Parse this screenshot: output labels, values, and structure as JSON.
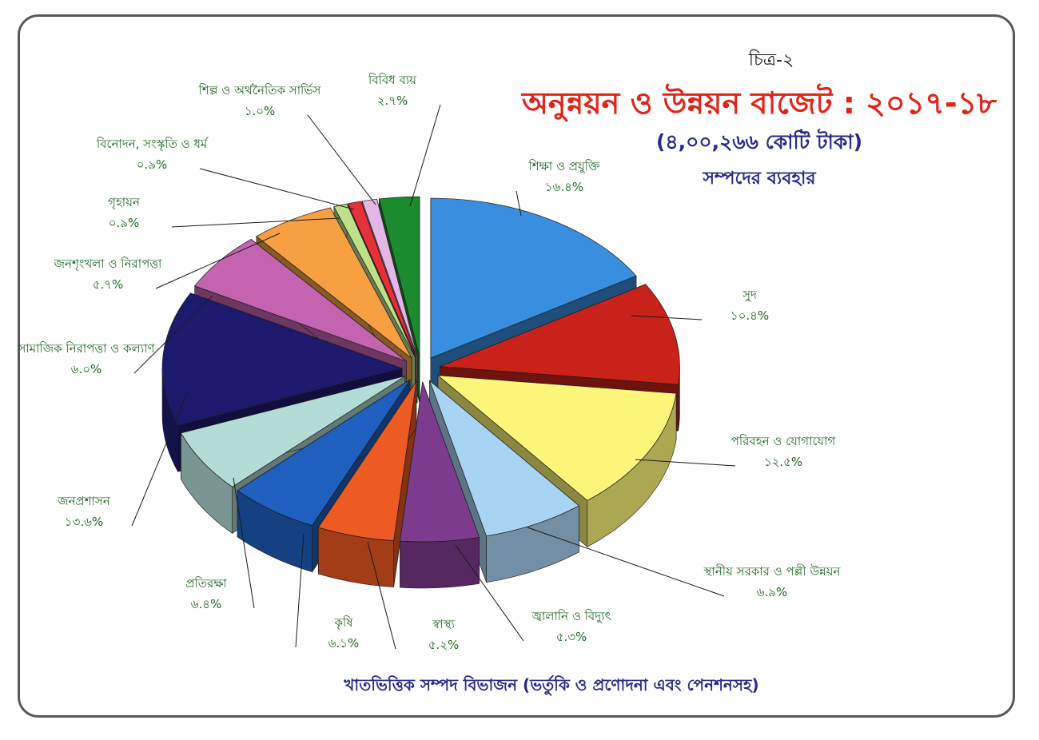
{
  "figure_number": "চিত্র-২",
  "colors": {
    "frame": "#555a5e",
    "title": "#e1251b",
    "subtitle": "#2a2a8a",
    "label": "#1d6a22"
  },
  "chart_data": {
    "type": "pie",
    "title": "অনুন্নয়ন ও উন্নয়ন বাজেট : ২০১৭-১৮",
    "subtitle": "(৪,০০,২৬৬ কোটি টাকা)",
    "subtitle2": "সম্পদের ব্যবহার",
    "footer": "খাতভিত্তিক সম্পদ বিভাজন (ভর্তুকি ও প্রণোদনা এবং পেনশনসহ)",
    "style": "3d-exploded",
    "slices": [
      {
        "label": "শিক্ষা ও প্রযুক্তি",
        "value_text": "১৬.৪%",
        "value": 16.4,
        "color": "#3a8ee0"
      },
      {
        "label": "সুদ",
        "value_text": "১০.৪%",
        "value": 10.4,
        "color": "#c8221a"
      },
      {
        "label": "পরিবহন ও যোগাযোগ",
        "value_text": "১২.৫%",
        "value": 12.5,
        "color": "#fdf57a"
      },
      {
        "label": "স্থানীয় সরকার ও পল্লী উন্নয়ন",
        "value_text": "৬.৯%",
        "value": 6.9,
        "color": "#a9d3f2"
      },
      {
        "label": "জ্বালানি ও বিদ্যুৎ",
        "value_text": "৫.৩%",
        "value": 5.3,
        "color": "#7d3b8e"
      },
      {
        "label": "স্বাস্থ্য",
        "value_text": "৫.২%",
        "value": 5.2,
        "color": "#ee5a24"
      },
      {
        "label": "কৃষি",
        "value_text": "৬.১%",
        "value": 6.1,
        "color": "#1f5fbf"
      },
      {
        "label": "প্রতিরক্ষা",
        "value_text": "৬.৪%",
        "value": 6.4,
        "color": "#b4dcd6"
      },
      {
        "label": "জনপ্রশাসন",
        "value_text": "১৩.৬%",
        "value": 13.6,
        "color": "#1d1a6e"
      },
      {
        "label": "সামাজিক নিরাপত্তা ও কল্যাণ",
        "value_text": "৬.০%",
        "value": 6.0,
        "color": "#c464b0"
      },
      {
        "label": "জনশৃংখলা ও নিরাপত্তা",
        "value_text": "৫.৭%",
        "value": 5.7,
        "color": "#f7a043"
      },
      {
        "label": "গৃহায়ন",
        "value_text": "০.৯%",
        "value": 0.9,
        "color": "#bfe08a"
      },
      {
        "label": "বিনোদন, সংস্কৃতি ও ধর্ম",
        "value_text": "০.৯%",
        "value": 0.9,
        "color": "#e8303a"
      },
      {
        "label": "শিল্প ও অর্থনৈতিক সার্ভিস",
        "value_text": "১.০%",
        "value": 1.0,
        "color": "#e3b6e4"
      },
      {
        "label": "বিবিধ ব্যয়",
        "value_text": "২.৭%",
        "value": 2.7,
        "color": "#1c8a2e"
      }
    ]
  }
}
